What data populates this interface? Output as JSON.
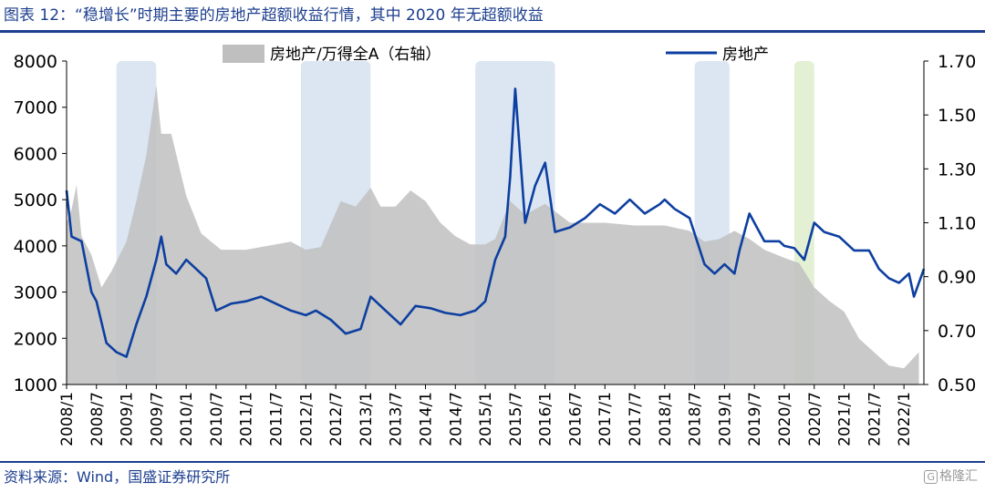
{
  "header": {
    "title": "图表 12：“稳增长”时期主要的房地产超额收益行情，其中 2020 年无超额收益"
  },
  "footer": {
    "source": "资料来源：Wind，国盛证券研究所",
    "watermark": "格隆汇",
    "watermark_mark": "G"
  },
  "chart_data": {
    "type": "line",
    "categories": [
      "2008/1",
      "2008/7",
      "2009/1",
      "2009/7",
      "2010/1",
      "2010/7",
      "2011/1",
      "2011/7",
      "2012/1",
      "2012/7",
      "2013/1",
      "2013/7",
      "2014/1",
      "2014/7",
      "2015/1",
      "2015/7",
      "2016/1",
      "2016/7",
      "2017/1",
      "2017/7",
      "2018/1",
      "2018/7",
      "2019/1",
      "2019/7",
      "2020/1",
      "2020/7",
      "2021/1",
      "2021/7",
      "2022/1"
    ],
    "ylim": [
      1000,
      8000
    ],
    "y_ticks": [
      "1000",
      "2000",
      "3000",
      "4000",
      "5000",
      "6000",
      "7000",
      "8000"
    ],
    "y2lim": [
      0.5,
      1.7
    ],
    "y2_ticks": [
      "0.50",
      "0.70",
      "0.90",
      "1.10",
      "1.30",
      "1.50",
      "1.70"
    ],
    "legend": {
      "placement": "top",
      "area_label": "房地产/万得全A（右轴）",
      "line_label": "房地产"
    },
    "colors": {
      "area": "#bfbfbf",
      "line": "#0d3fa0",
      "shade_blue": "#dce6f2",
      "shade_green": "#e3f0d3"
    },
    "highlights": [
      {
        "start": "2008/11",
        "end": "2009/7",
        "color": "blue"
      },
      {
        "start": "2011/12",
        "end": "2013/2",
        "color": "blue"
      },
      {
        "start": "2014/11",
        "end": "2016/3",
        "color": "blue"
      },
      {
        "start": "2018/7",
        "end": "2019/2",
        "color": "blue"
      },
      {
        "start": "2020/3",
        "end": "2020/7",
        "color": "green"
      }
    ],
    "series": [
      {
        "name": "房地产/万得全A（右轴）",
        "type": "area",
        "axis": "right",
        "x": [
          "2008/1",
          "2008/2",
          "2008/3",
          "2008/4",
          "2008/6",
          "2008/8",
          "2008/10",
          "2009/1",
          "2009/3",
          "2009/5",
          "2009/7",
          "2009/8",
          "2009/10",
          "2010/1",
          "2010/4",
          "2010/6",
          "2010/8",
          "2011/1",
          "2011/4",
          "2011/7",
          "2011/10",
          "2012/1",
          "2012/4",
          "2012/8",
          "2012/11",
          "2013/2",
          "2013/4",
          "2013/7",
          "2013/10",
          "2014/1",
          "2014/4",
          "2014/7",
          "2014/10",
          "2015/1",
          "2015/3",
          "2015/6",
          "2015/9",
          "2016/1",
          "2016/6",
          "2017/1",
          "2017/7",
          "2018/1",
          "2018/6",
          "2018/9",
          "2018/12",
          "2019/3",
          "2019/6",
          "2019/9",
          "2020/1",
          "2020/4",
          "2020/7",
          "2020/10",
          "2021/1",
          "2021/4",
          "2021/7",
          "2021/10",
          "2022/1",
          "2022/4"
        ],
        "values": [
          1.1,
          1.15,
          1.24,
          1.05,
          0.98,
          0.86,
          0.92,
          1.03,
          1.18,
          1.35,
          1.61,
          1.43,
          1.43,
          1.2,
          1.06,
          1.03,
          1.0,
          1.0,
          1.01,
          1.02,
          1.03,
          1.0,
          1.01,
          1.18,
          1.16,
          1.23,
          1.16,
          1.16,
          1.22,
          1.18,
          1.1,
          1.05,
          1.02,
          1.02,
          1.04,
          1.18,
          1.13,
          1.17,
          1.1,
          1.1,
          1.09,
          1.09,
          1.07,
          1.03,
          1.04,
          1.07,
          1.04,
          1.0,
          0.97,
          0.95,
          0.86,
          0.81,
          0.77,
          0.67,
          0.62,
          0.57,
          0.56,
          0.62
        ]
      },
      {
        "name": "房地产",
        "type": "line",
        "axis": "left",
        "x": [
          "2008/1",
          "2008/2",
          "2008/4",
          "2008/6",
          "2008/7",
          "2008/9",
          "2008/11",
          "2009/1",
          "2009/3",
          "2009/5",
          "2009/7",
          "2009/8",
          "2009/9",
          "2009/11",
          "2010/1",
          "2010/3",
          "2010/5",
          "2010/7",
          "2010/10",
          "2011/1",
          "2011/4",
          "2011/7",
          "2011/10",
          "2012/1",
          "2012/3",
          "2012/6",
          "2012/9",
          "2012/12",
          "2013/2",
          "2013/5",
          "2013/8",
          "2013/11",
          "2014/2",
          "2014/5",
          "2014/8",
          "2014/11",
          "2015/1",
          "2015/3",
          "2015/5",
          "2015/6",
          "2015/7",
          "2015/9",
          "2015/11",
          "2016/1",
          "2016/3",
          "2016/6",
          "2016/9",
          "2016/12",
          "2017/3",
          "2017/6",
          "2017/9",
          "2017/12",
          "2018/1",
          "2018/3",
          "2018/6",
          "2018/9",
          "2018/11",
          "2019/1",
          "2019/3",
          "2019/4",
          "2019/6",
          "2019/9",
          "2019/12",
          "2020/1",
          "2020/3",
          "2020/5",
          "2020/7",
          "2020/9",
          "2020/12",
          "2021/3",
          "2021/6",
          "2021/8",
          "2021/10",
          "2021/12",
          "2022/2",
          "2022/3",
          "2022/5"
        ],
        "values": [
          5200,
          4200,
          4100,
          3000,
          2800,
          1900,
          1700,
          1600,
          2300,
          2900,
          3700,
          4200,
          3600,
          3400,
          3700,
          3500,
          3300,
          2600,
          2750,
          2800,
          2900,
          2750,
          2600,
          2500,
          2600,
          2400,
          2100,
          2200,
          2900,
          2600,
          2300,
          2700,
          2650,
          2550,
          2500,
          2600,
          2800,
          3700,
          4200,
          5500,
          7400,
          4500,
          5300,
          5800,
          4300,
          4400,
          4600,
          4900,
          4700,
          5000,
          4700,
          4900,
          5000,
          4800,
          4600,
          3600,
          3400,
          3600,
          3400,
          3900,
          4700,
          4100,
          4100,
          4000,
          3950,
          3700,
          4500,
          4300,
          4200,
          3900,
          3900,
          3500,
          3300,
          3200,
          3400,
          2900,
          3500
        ]
      }
    ]
  }
}
